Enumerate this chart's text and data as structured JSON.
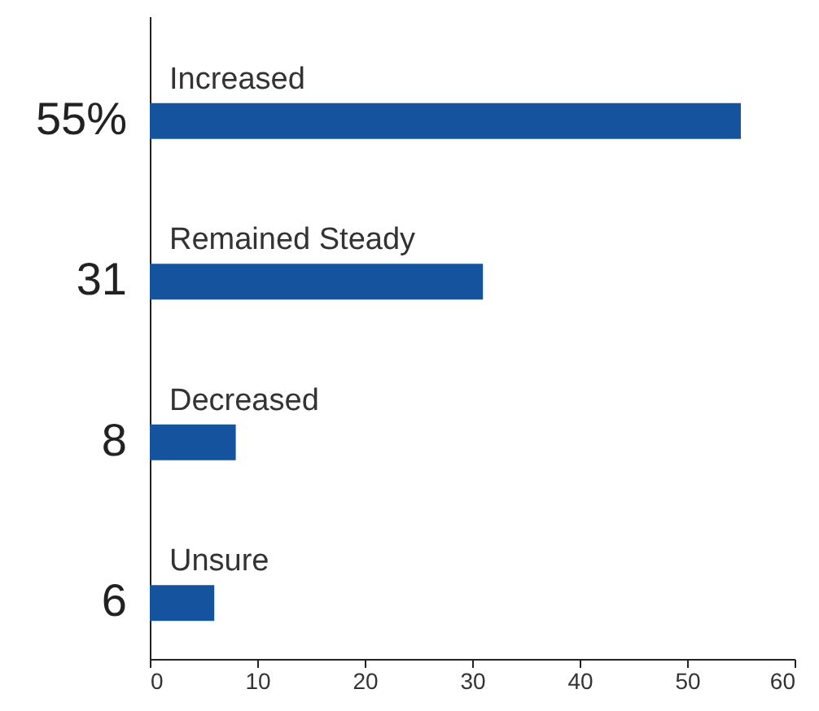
{
  "chart_data": {
    "type": "bar",
    "orientation": "horizontal",
    "categories": [
      "Increased",
      "Remained Steady",
      "Decreased",
      "Unsure"
    ],
    "values": [
      55,
      31,
      8,
      6
    ],
    "value_labels": [
      "55%",
      "31",
      "8",
      "6"
    ],
    "color": "#15539e",
    "xlim": [
      0,
      60
    ],
    "xticks": [
      0,
      10,
      20,
      30,
      40,
      50,
      60
    ],
    "grid": false
  }
}
